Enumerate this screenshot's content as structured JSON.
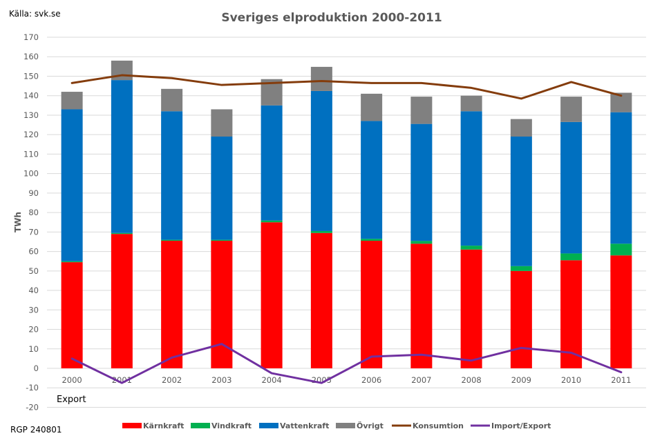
{
  "source_label": "Källa: svk.se",
  "footer_label": "RGP 240801",
  "export_label": "Export",
  "chart_data": {
    "type": "bar",
    "stacked": true,
    "title": "Sveriges elproduktion 2000-2011",
    "xlabel": "",
    "ylabel": "TWh",
    "ylim": [
      -20,
      170
    ],
    "ytick_step": 10,
    "grid": true,
    "legend_position": "bottom",
    "categories": [
      "2000",
      "2001",
      "2002",
      "2003",
      "2004",
      "2005",
      "2006",
      "2007",
      "2008",
      "2009",
      "2010",
      "2011"
    ],
    "series": [
      {
        "name": "Kärnkraft",
        "kind": "bar",
        "color": "#ff0000",
        "values": [
          54.5,
          69,
          65.5,
          65.5,
          75,
          69.5,
          65.5,
          64,
          61,
          50,
          55.5,
          58
        ]
      },
      {
        "name": "Vindkraft",
        "kind": "bar",
        "color": "#00b050",
        "values": [
          0.5,
          0.5,
          0.5,
          0.5,
          0.9,
          1,
          1,
          1.4,
          2,
          2.5,
          3.5,
          6
        ]
      },
      {
        "name": "Vattenkraft",
        "kind": "bar",
        "color": "#0070c0",
        "values": [
          78,
          78.5,
          66,
          53,
          59.1,
          71.9,
          60.5,
          60.1,
          69,
          66.5,
          67.5,
          67.5
        ]
      },
      {
        "name": "Övrigt",
        "kind": "bar",
        "color": "#808080",
        "values": [
          9,
          10,
          11.5,
          14,
          13.5,
          12.4,
          14,
          14,
          8,
          9,
          13,
          10
        ]
      },
      {
        "name": "Konsumtion",
        "kind": "line",
        "color": "#843c0c",
        "values": [
          146.5,
          150.5,
          149,
          145.5,
          146.5,
          147.5,
          146.5,
          146.5,
          144,
          138.5,
          147,
          140
        ]
      },
      {
        "name": "Import/Export",
        "kind": "line",
        "color": "#7030a0",
        "values": [
          5,
          -7.5,
          5.5,
          12.5,
          -2.5,
          -7.5,
          6,
          7,
          4,
          10.5,
          8,
          -2
        ]
      }
    ]
  }
}
